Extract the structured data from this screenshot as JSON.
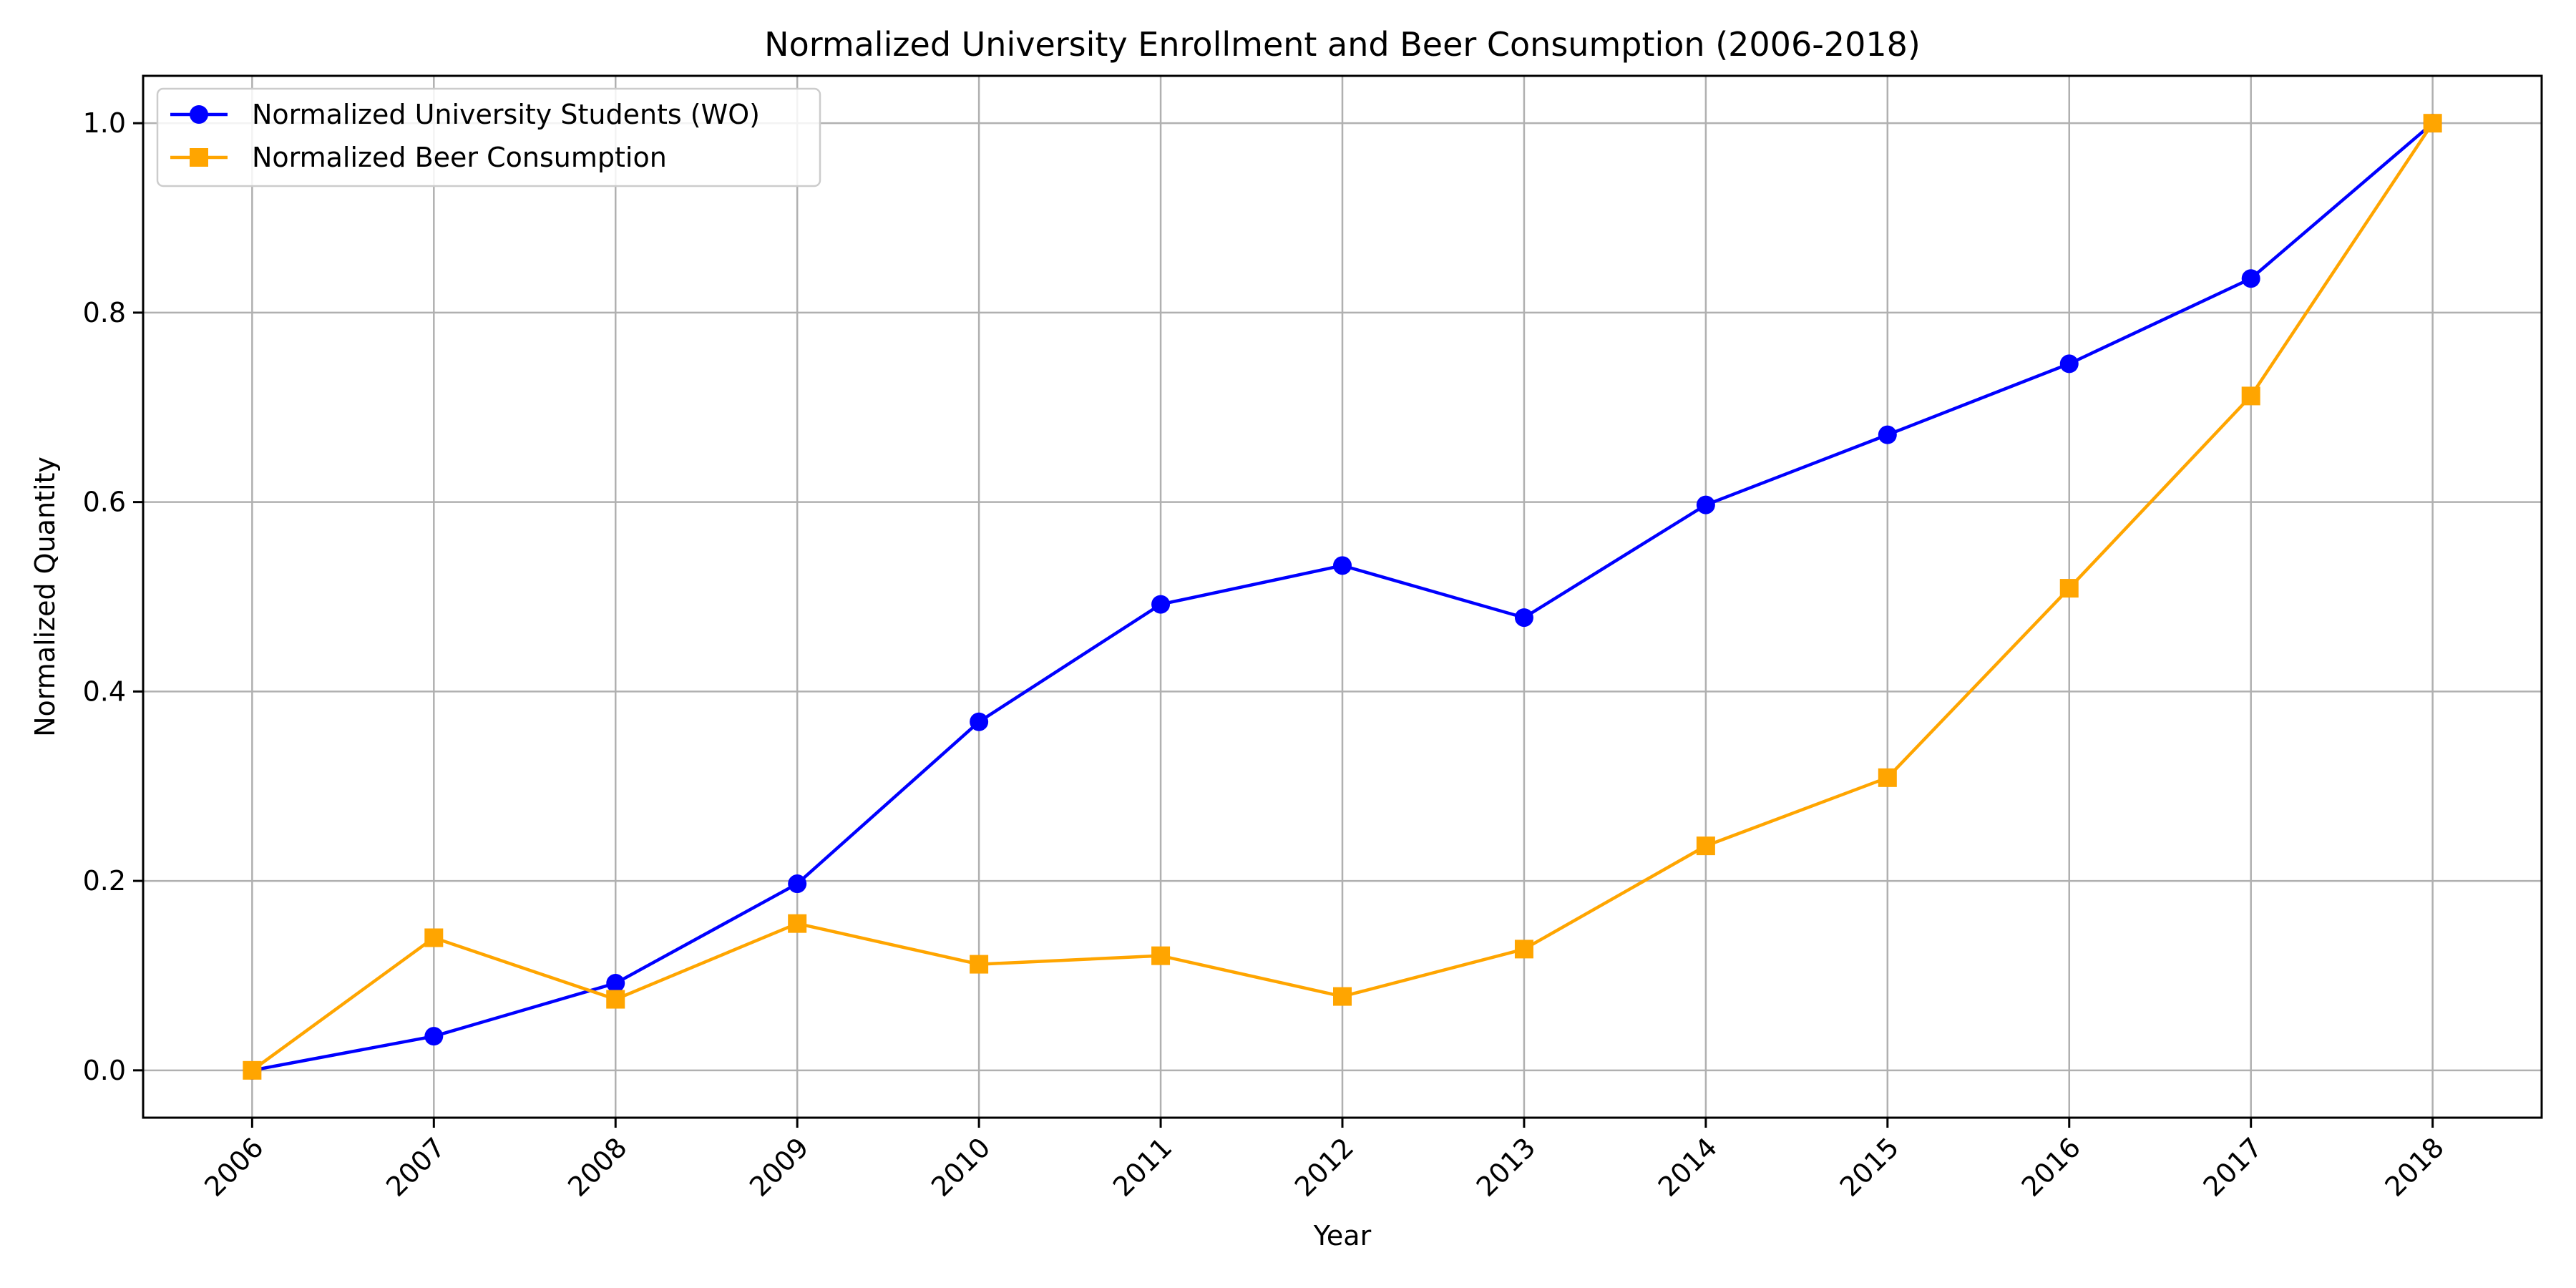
{
  "chart_data": {
    "type": "line",
    "title": "Normalized University Enrollment and Beer Consumption (2006-2018)",
    "xlabel": "Year",
    "ylabel": "Normalized Quantity",
    "x": [
      2006,
      2007,
      2008,
      2009,
      2010,
      2011,
      2012,
      2013,
      2014,
      2015,
      2016,
      2017,
      2018
    ],
    "x_tick_labels": [
      "2006",
      "2007",
      "2008",
      "2009",
      "2010",
      "2011",
      "2012",
      "2013",
      "2014",
      "2015",
      "2016",
      "2017",
      "2018"
    ],
    "y_ticks": [
      0.0,
      0.2,
      0.4,
      0.6,
      0.8,
      1.0
    ],
    "y_tick_labels": [
      "0.0",
      "0.2",
      "0.4",
      "0.6",
      "0.8",
      "1.0"
    ],
    "xlim": [
      2005.4,
      2018.6
    ],
    "ylim": [
      -0.05,
      1.05
    ],
    "grid": true,
    "legend_position": "top-left",
    "series": [
      {
        "name": "Normalized University Students (WO)",
        "color": "#0000ff",
        "marker": "circle",
        "values": [
          0.0,
          0.036,
          0.092,
          0.197,
          0.368,
          0.492,
          0.533,
          0.478,
          0.597,
          0.671,
          0.746,
          0.836,
          1.0
        ]
      },
      {
        "name": "Normalized Beer Consumption",
        "color": "#ffa500",
        "marker": "square",
        "values": [
          0.0,
          0.14,
          0.075,
          0.155,
          0.112,
          0.121,
          0.078,
          0.128,
          0.237,
          0.309,
          0.509,
          0.712,
          1.0
        ]
      }
    ]
  }
}
